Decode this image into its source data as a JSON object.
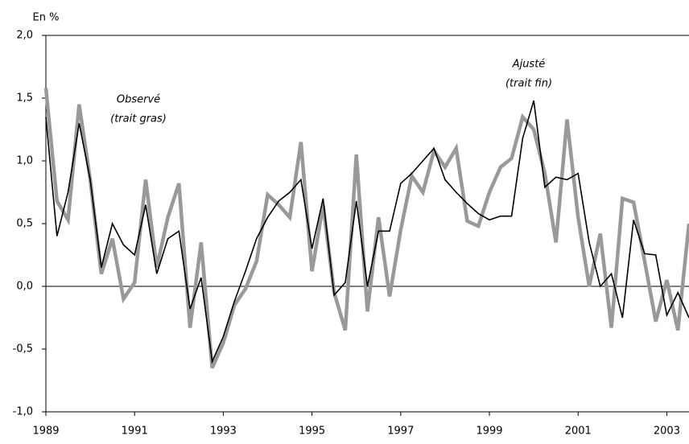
{
  "chart_data": {
    "type": "line",
    "y_unit": "En %",
    "x": [
      1989,
      1989.25,
      1989.5,
      1989.75,
      1990,
      1990.25,
      1990.5,
      1990.75,
      1991,
      1991.25,
      1991.5,
      1991.75,
      1992,
      1992.25,
      1992.5,
      1992.75,
      1993,
      1993.25,
      1993.5,
      1993.75,
      1994,
      1994.25,
      1994.5,
      1994.75,
      1995,
      1995.25,
      1995.5,
      1995.75,
      1996,
      1996.25,
      1996.5,
      1996.75,
      1997,
      1997.25,
      1997.5,
      1997.75,
      1998,
      1998.25,
      1998.5,
      1998.75,
      1999,
      1999.25,
      1999.5,
      1999.75,
      2000,
      2000.25,
      2000.5,
      2000.75,
      2001,
      2001.25,
      2001.5,
      2001.75,
      2002,
      2002.25,
      2002.5,
      2002.75,
      2003,
      2003.25,
      2003.5
    ],
    "series": [
      {
        "name": "Observé",
        "note": "(trait gras)",
        "color": "#999999",
        "width": 4.5,
        "values": [
          1.58,
          0.68,
          0.53,
          1.45,
          0.85,
          0.1,
          0.38,
          -0.1,
          0.03,
          0.85,
          0.15,
          0.55,
          0.82,
          -0.33,
          0.35,
          -0.65,
          -0.45,
          -0.15,
          -0.02,
          0.2,
          0.73,
          0.65,
          0.55,
          1.15,
          0.12,
          0.65,
          -0.05,
          -0.35,
          1.05,
          -0.2,
          0.55,
          -0.08,
          0.45,
          0.88,
          0.75,
          1.08,
          0.95,
          1.1,
          0.52,
          0.48,
          0.75,
          0.95,
          1.02,
          1.35,
          1.25,
          0.9,
          0.35,
          1.33,
          0.55,
          0.0,
          0.42,
          -0.33,
          0.7,
          0.67,
          0.2,
          -0.28,
          0.05,
          -0.35,
          0.5
        ]
      },
      {
        "name": "Ajusté",
        "note": "(trait fin)",
        "color": "#000000",
        "width": 1.6,
        "values": [
          1.35,
          0.4,
          0.75,
          1.3,
          0.85,
          0.15,
          0.5,
          0.33,
          0.25,
          0.65,
          0.1,
          0.38,
          0.44,
          -0.18,
          0.07,
          -0.6,
          -0.4,
          -0.12,
          0.12,
          0.38,
          0.55,
          0.68,
          0.75,
          0.85,
          0.3,
          0.7,
          -0.07,
          0.03,
          0.68,
          0.0,
          0.44,
          0.44,
          0.82,
          0.9,
          1.0,
          1.1,
          0.85,
          0.75,
          0.66,
          0.58,
          0.53,
          0.56,
          0.56,
          1.18,
          1.48,
          0.79,
          0.87,
          0.85,
          0.9,
          0.35,
          0.0,
          0.1,
          -0.25,
          0.53,
          0.26,
          0.25,
          -0.23,
          -0.05,
          -0.25
        ]
      }
    ],
    "xlim": [
      1989,
      2003.5
    ],
    "xticks": [
      1989,
      1991,
      1993,
      1995,
      1997,
      1999,
      2001,
      2003
    ],
    "ylim": [
      -1,
      2
    ],
    "yticks": [
      {
        "value": -1,
        "label": "-1,0"
      },
      {
        "value": -0.5,
        "label": "-0,5"
      },
      {
        "value": 0,
        "label": "0,0"
      },
      {
        "value": 0.5,
        "label": "0,5"
      },
      {
        "value": 1,
        "label": "1,0"
      },
      {
        "value": 1.5,
        "label": "1,5"
      },
      {
        "value": 2,
        "label": "2,0"
      }
    ],
    "zero_line": true
  }
}
